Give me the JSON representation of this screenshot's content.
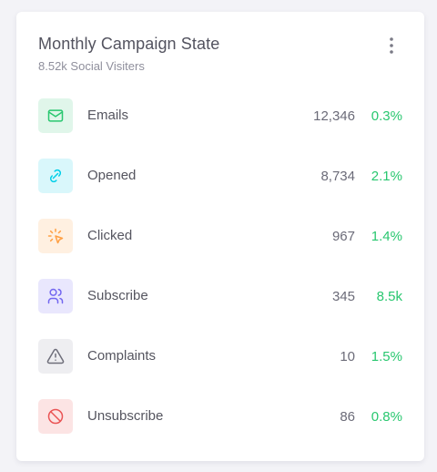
{
  "card": {
    "title": "Monthly Campaign State",
    "subtitle": "8.52k Social Visiters",
    "menu_icon": "dots-vertical-icon"
  },
  "colors": {
    "positive": "#28c76f"
  },
  "items": [
    {
      "label": "Emails",
      "value": "12,346",
      "change": "0.3%",
      "icon": "mail-icon",
      "icon_color": "#28c76f",
      "bg": "#e0f6ea"
    },
    {
      "label": "Opened",
      "value": "8,734",
      "change": "2.1%",
      "icon": "link-icon",
      "icon_color": "#00cfe8",
      "bg": "#d9f7fb"
    },
    {
      "label": "Clicked",
      "value": "967",
      "change": "1.4%",
      "icon": "pointer-click-icon",
      "icon_color": "#ff9f43",
      "bg": "#fff0e1"
    },
    {
      "label": "Subscribe",
      "value": "345",
      "change": "8.5k",
      "icon": "users-icon",
      "icon_color": "#7367f0",
      "bg": "#e9e7fd"
    },
    {
      "label": "Complaints",
      "value": "10",
      "change": "1.5%",
      "icon": "alert-triangle-icon",
      "icon_color": "#6e6e7a",
      "bg": "#eeeef1"
    },
    {
      "label": "Unsubscribe",
      "value": "86",
      "change": "0.8%",
      "icon": "ban-icon",
      "icon_color": "#ea5455",
      "bg": "#fce4e4"
    }
  ]
}
